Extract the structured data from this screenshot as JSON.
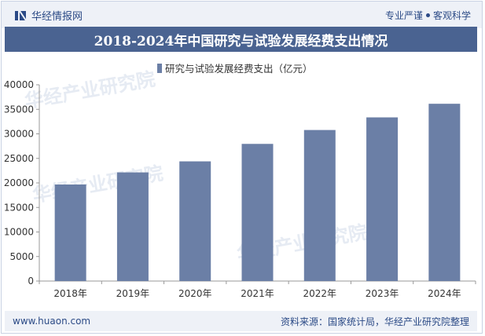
{
  "header": {
    "brand": "华经情报网",
    "slogan_a": "专业严谨",
    "slogan_b": "客观科学"
  },
  "footer": {
    "url": "www.huaon.com",
    "source": "资料来源：国家统计局，华经产业研究院整理"
  },
  "watermark_text": "华经产业研究院",
  "colors": {
    "bar": "#6b7fa6",
    "title_bg": "#4a6391",
    "accent": "#2b4a86"
  },
  "chart_data": {
    "type": "bar",
    "title": "2018-2024年中国研究与试验发展经费支出情况",
    "categories": [
      "2018年",
      "2019年",
      "2020年",
      "2021年",
      "2022年",
      "2023年",
      "2024年"
    ],
    "series": [
      {
        "name": "研究与试验发展经费支出（亿元）",
        "values": [
          19678,
          22144,
          24393,
          27956,
          30783,
          33357,
          36130
        ]
      }
    ],
    "ylim": [
      0,
      40000
    ],
    "yticks": [
      0,
      5000,
      10000,
      15000,
      20000,
      25000,
      30000,
      35000,
      40000
    ],
    "grid": false,
    "legend": "top-center"
  }
}
